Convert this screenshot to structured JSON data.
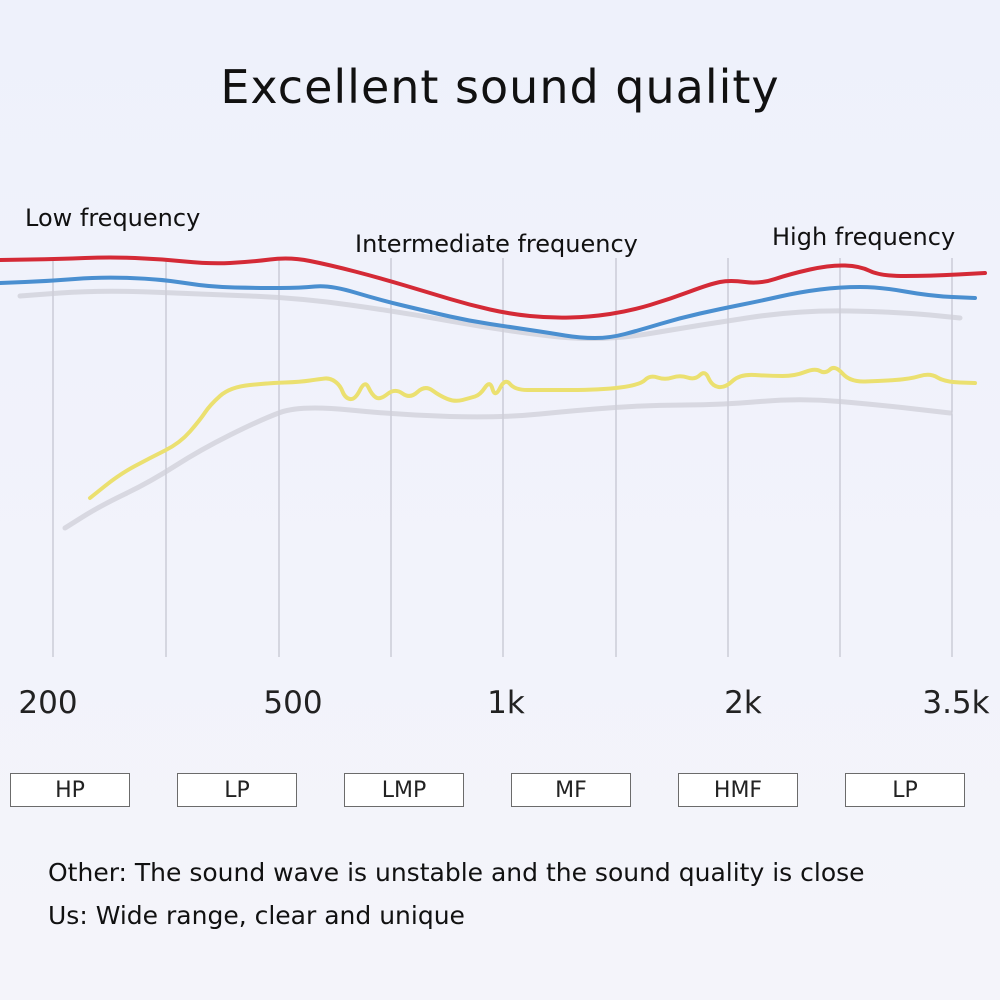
{
  "title": "Excellent sound quality",
  "chart_data": {
    "type": "line",
    "x_ticks": [
      "200",
      "500",
      "1k",
      "2k",
      "3.5k"
    ],
    "region_labels": [
      "Low frequency",
      "Intermediate frequency",
      "High frequency"
    ],
    "bands": [
      "HP",
      "LP",
      "LMP",
      "MF",
      "HMF",
      "LP"
    ],
    "colors": {
      "red": "#d42a36",
      "blue": "#4a8fd0",
      "yellow": "#ebe070",
      "gray": "#cfcfd8",
      "grid": "#b8b8c4"
    },
    "series": [
      {
        "color": "red",
        "values": [
          [
            0,
            260
          ],
          [
            60,
            259
          ],
          [
            110,
            257
          ],
          [
            160,
            259
          ],
          [
            210,
            264
          ],
          [
            250,
            262
          ],
          [
            290,
            257
          ],
          [
            330,
            265
          ],
          [
            380,
            278
          ],
          [
            430,
            293
          ],
          [
            470,
            305
          ],
          [
            510,
            314
          ],
          [
            550,
            318
          ],
          [
            590,
            317
          ],
          [
            630,
            311
          ],
          [
            670,
            299
          ],
          [
            710,
            284
          ],
          [
            730,
            280
          ],
          [
            760,
            284
          ],
          [
            790,
            274
          ],
          [
            830,
            265
          ],
          [
            860,
            266
          ],
          [
            880,
            276
          ],
          [
            930,
            276
          ],
          [
            985,
            273
          ]
        ]
      },
      {
        "color": "blue",
        "values": [
          [
            0,
            283
          ],
          [
            50,
            281
          ],
          [
            100,
            277
          ],
          [
            160,
            279
          ],
          [
            210,
            287
          ],
          [
            260,
            288
          ],
          [
            300,
            288
          ],
          [
            330,
            285
          ],
          [
            380,
            300
          ],
          [
            430,
            312
          ],
          [
            470,
            321
          ],
          [
            510,
            327
          ],
          [
            550,
            333
          ],
          [
            580,
            338
          ],
          [
            610,
            338
          ],
          [
            640,
            330
          ],
          [
            680,
            318
          ],
          [
            720,
            309
          ],
          [
            760,
            301
          ],
          [
            800,
            292
          ],
          [
            840,
            287
          ],
          [
            880,
            287
          ],
          [
            930,
            296
          ],
          [
            975,
            298
          ]
        ]
      },
      {
        "color": "yellow",
        "values": [
          [
            90,
            498
          ],
          [
            120,
            474
          ],
          [
            150,
            458
          ],
          [
            180,
            443
          ],
          [
            200,
            420
          ],
          [
            210,
            405
          ],
          [
            230,
            387
          ],
          [
            270,
            383
          ],
          [
            300,
            382
          ],
          [
            320,
            379
          ],
          [
            330,
            378
          ],
          [
            340,
            385
          ],
          [
            345,
            398
          ],
          [
            355,
            400
          ],
          [
            365,
            380
          ],
          [
            372,
            395
          ],
          [
            380,
            400
          ],
          [
            395,
            388
          ],
          [
            410,
            399
          ],
          [
            425,
            385
          ],
          [
            440,
            396
          ],
          [
            455,
            402
          ],
          [
            470,
            398
          ],
          [
            480,
            395
          ],
          [
            490,
            380
          ],
          [
            495,
            398
          ],
          [
            505,
            378
          ],
          [
            515,
            390
          ],
          [
            540,
            390
          ],
          [
            600,
            390
          ],
          [
            640,
            385
          ],
          [
            650,
            375
          ],
          [
            665,
            380
          ],
          [
            680,
            375
          ],
          [
            695,
            380
          ],
          [
            705,
            370
          ],
          [
            712,
            386
          ],
          [
            725,
            388
          ],
          [
            740,
            374
          ],
          [
            770,
            376
          ],
          [
            795,
            376
          ],
          [
            815,
            368
          ],
          [
            825,
            374
          ],
          [
            835,
            365
          ],
          [
            850,
            382
          ],
          [
            880,
            381
          ],
          [
            910,
            379
          ],
          [
            930,
            373
          ],
          [
            945,
            382
          ],
          [
            975,
            383
          ]
        ]
      },
      {
        "color": "gray",
        "values": [
          [
            20,
            296
          ],
          [
            100,
            290
          ],
          [
            200,
            294
          ],
          [
            300,
            298
          ],
          [
            400,
            312
          ],
          [
            500,
            330
          ],
          [
            600,
            342
          ],
          [
            700,
            325
          ],
          [
            800,
            310
          ],
          [
            900,
            312
          ],
          [
            960,
            318
          ]
        ]
      },
      {
        "color": "gray",
        "values": [
          [
            65,
            528
          ],
          [
            100,
            506
          ],
          [
            150,
            482
          ],
          [
            200,
            450
          ],
          [
            260,
            420
          ],
          [
            300,
            405
          ],
          [
            400,
            415
          ],
          [
            500,
            418
          ],
          [
            580,
            410
          ],
          [
            650,
            405
          ],
          [
            720,
            405
          ],
          [
            800,
            398
          ],
          [
            880,
            405
          ],
          [
            950,
            413
          ]
        ]
      }
    ]
  },
  "notes": {
    "other": "Other: The sound wave is unstable and the sound quality is close",
    "us": "Us: Wide range, clear and unique"
  }
}
